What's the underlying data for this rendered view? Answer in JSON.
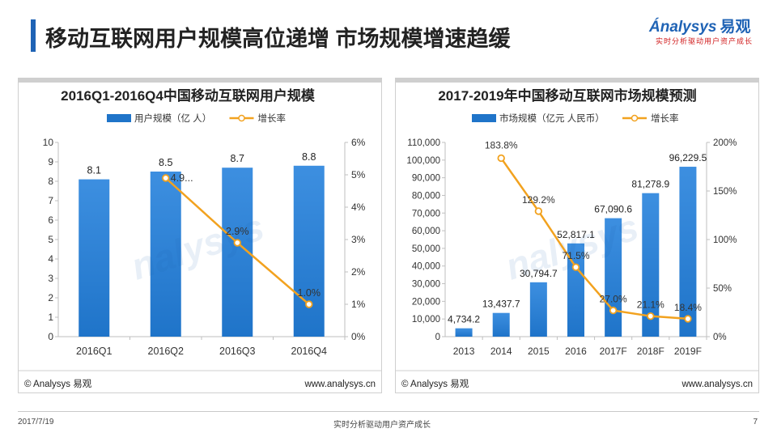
{
  "page": {
    "title": "移动互联网用户规模高位递增 市场规模增速趋缓",
    "logo_text": "nalysys",
    "logo_cn": "易观",
    "logo_slogan": "实时分析驱动用户资产成长",
    "footer_date": "2017/7/19",
    "footer_slogan": "实时分析驱动用户资产成长",
    "page_number": "7"
  },
  "colors": {
    "bar": "#1f74c9",
    "bar_light": "#3d8fe0",
    "line": "#f2a21f",
    "accent": "#1f63b5"
  },
  "chart_data": [
    {
      "type": "bar",
      "title": "2016Q1-2016Q4中国移动互联网用户规模",
      "categories": [
        "2016Q1",
        "2016Q2",
        "2016Q3",
        "2016Q4"
      ],
      "series": [
        {
          "name": "用户规模（亿 人）",
          "type": "bar",
          "axis": "left",
          "values": [
            8.1,
            8.5,
            8.7,
            8.8
          ],
          "labels": [
            "8.1",
            "8.5",
            "8.7",
            "8.8"
          ]
        },
        {
          "name": "增长率",
          "type": "line",
          "axis": "right",
          "values": [
            null,
            4.9,
            2.9,
            1.0
          ],
          "labels": [
            "",
            "4.9...",
            "2.9%",
            "1.0%"
          ]
        }
      ],
      "yleft": {
        "min": 0,
        "max": 10,
        "ticks": [
          "0",
          "1",
          "2",
          "3",
          "4",
          "5",
          "6",
          "7",
          "8",
          "9",
          "10"
        ]
      },
      "yright": {
        "min": 0,
        "max": 6,
        "ticks": [
          "0%",
          "1%",
          "2%",
          "3%",
          "4%",
          "5%",
          "6%"
        ]
      },
      "source": "© Analysys 易观",
      "url": "www.analysys.cn"
    },
    {
      "type": "bar",
      "title": "2017-2019年中国移动互联网市场规模预测",
      "categories": [
        "2013",
        "2014",
        "2015",
        "2016",
        "2017F",
        "2018F",
        "2019F"
      ],
      "series": [
        {
          "name": "市场规模（亿元 人民币）",
          "type": "bar",
          "axis": "left",
          "values": [
            4734.2,
            13437.7,
            30794.7,
            52817.1,
            67090.6,
            81278.9,
            96229.5
          ],
          "labels": [
            "4,734.2",
            "13,437.7",
            "30,794.7",
            "52,817.1",
            "67,090.6",
            "81,278.9",
            "96,229.5"
          ]
        },
        {
          "name": "增长率",
          "type": "line",
          "axis": "right",
          "values": [
            null,
            183.8,
            129.2,
            71.5,
            27.0,
            21.1,
            18.4
          ],
          "labels": [
            "",
            "183.8%",
            "129.2%",
            "71.5%",
            "27.0%",
            "21.1%",
            "18.4%"
          ]
        }
      ],
      "yleft": {
        "min": 0,
        "max": 110000,
        "ticks": [
          "0",
          "10,000",
          "20,000",
          "30,000",
          "40,000",
          "50,000",
          "60,000",
          "70,000",
          "80,000",
          "90,000",
          "100,000",
          "110,000"
        ]
      },
      "yright": {
        "min": 0,
        "max": 200,
        "ticks": [
          "0%",
          "50%",
          "100%",
          "150%",
          "200%"
        ]
      },
      "source": "© Analysys 易观",
      "url": "www.analysys.cn"
    }
  ]
}
